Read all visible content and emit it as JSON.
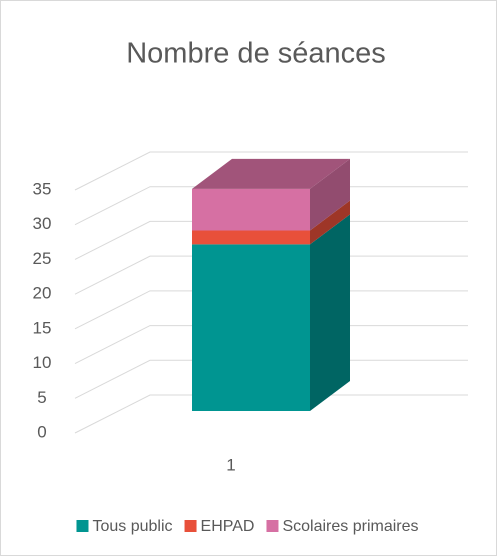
{
  "chart_data": {
    "type": "bar3d_stacked",
    "title": "Nombre de séances",
    "categories": [
      "1"
    ],
    "series": [
      {
        "name": "Tous public",
        "color": "#009591",
        "values": [
          24
        ]
      },
      {
        "name": "EHPAD",
        "color": "#e8503a",
        "values": [
          2
        ]
      },
      {
        "name": "Scolaires primaires",
        "color": "#d670a3",
        "values": [
          6
        ]
      }
    ],
    "ylim": [
      0,
      35
    ],
    "yticks": [
      0,
      5,
      10,
      15,
      20,
      25,
      30,
      35
    ],
    "grid": true,
    "legend": "bottom"
  }
}
